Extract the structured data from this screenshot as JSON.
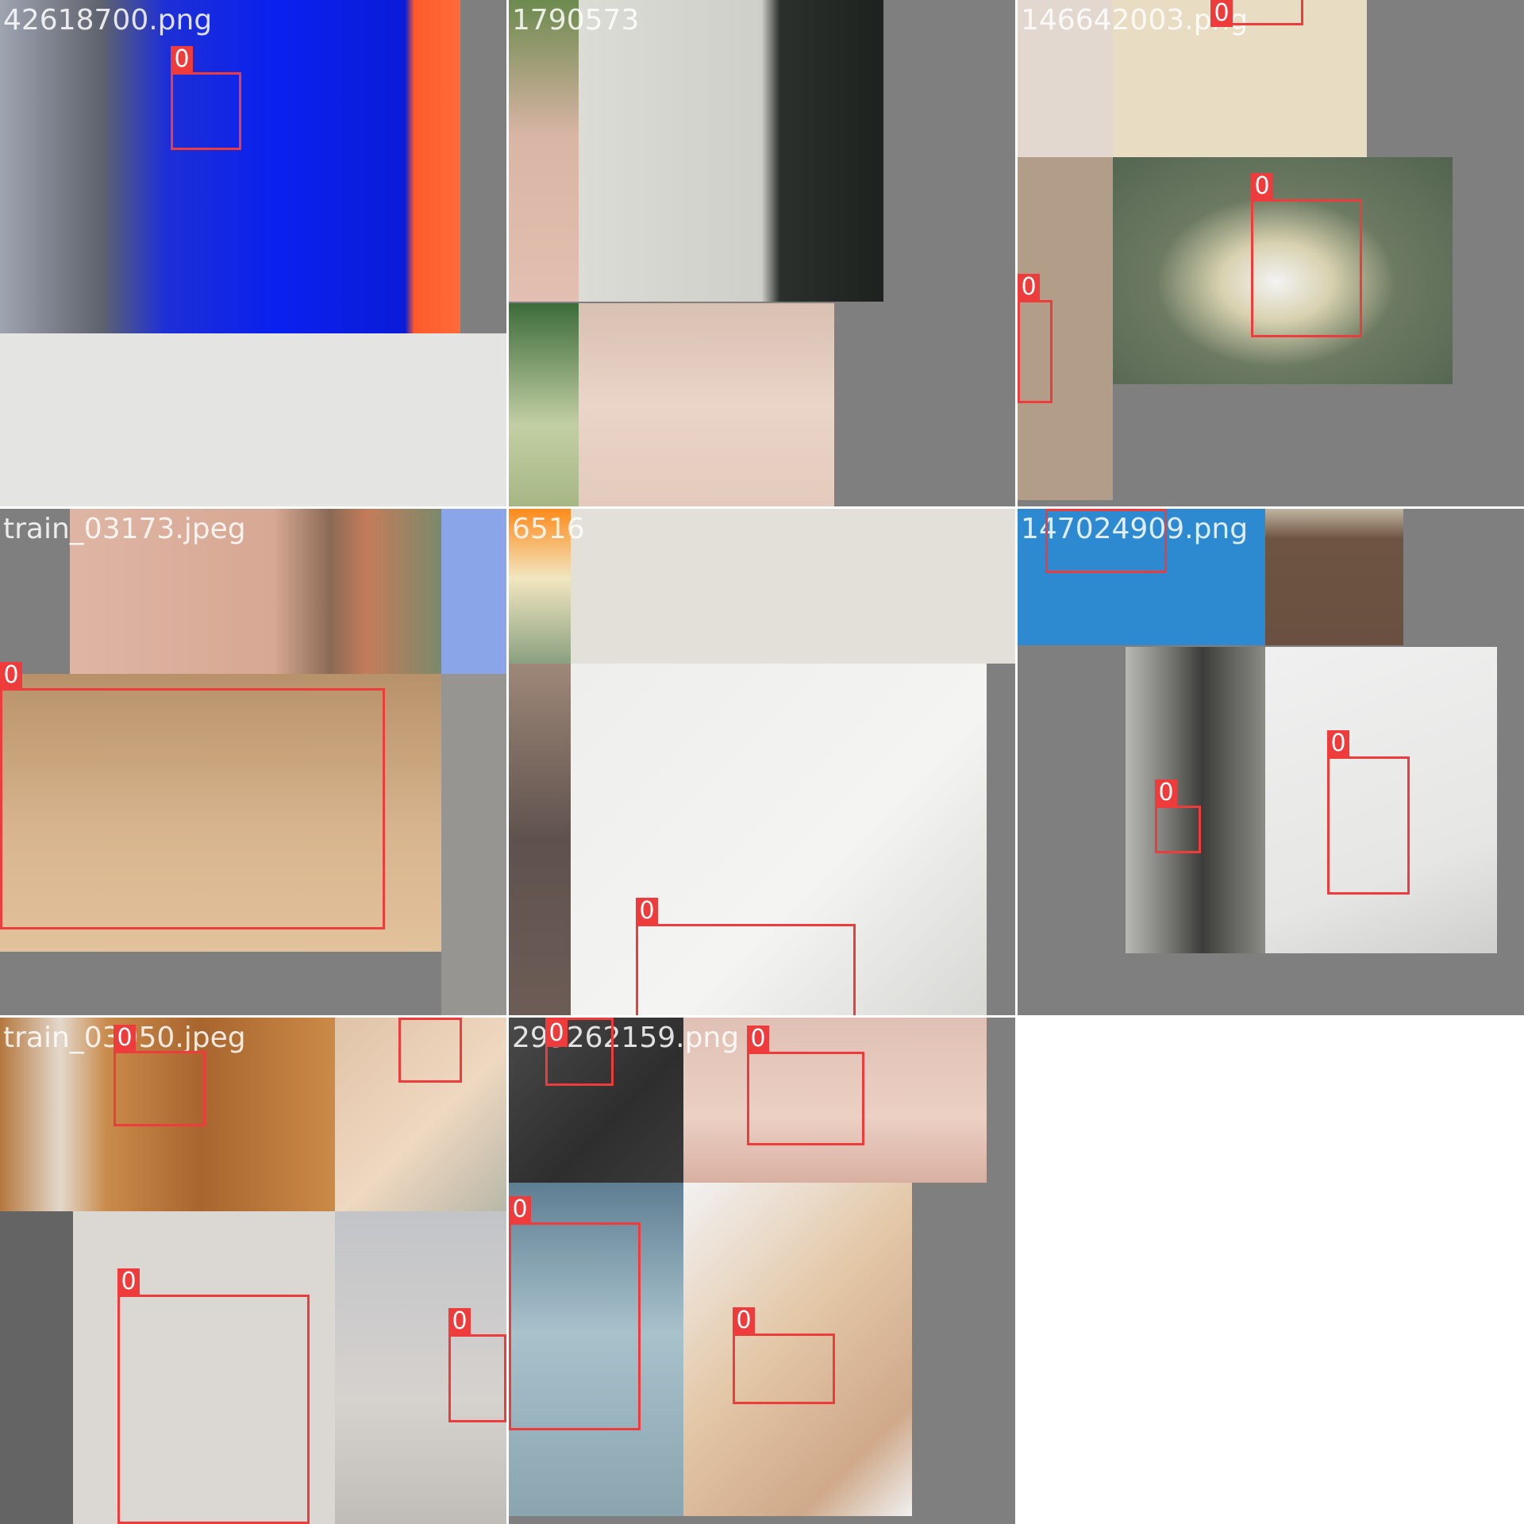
{
  "mosaic": {
    "background": "#ffffff",
    "box_color": "#ee3b3b",
    "cells": [
      {
        "filename": "42618700.png",
        "class_labels": [
          "0"
        ]
      },
      {
        "filename": "1790573",
        "class_labels": []
      },
      {
        "filename": "146642003.png",
        "class_labels": [
          "0",
          "0",
          "0"
        ]
      },
      {
        "filename": "train_03173.jpeg",
        "class_labels": [
          "0"
        ]
      },
      {
        "filename": "6516",
        "class_labels": [
          "0"
        ]
      },
      {
        "filename": "147024909.png",
        "class_labels": [
          "0",
          "0",
          "0"
        ]
      },
      {
        "filename": "train_03050.jpeg",
        "class_labels": [
          "0",
          "0",
          "0",
          "0"
        ]
      },
      {
        "filename": "295262159.png",
        "class_labels": [
          "0",
          "0",
          "0",
          "0"
        ]
      }
    ]
  }
}
